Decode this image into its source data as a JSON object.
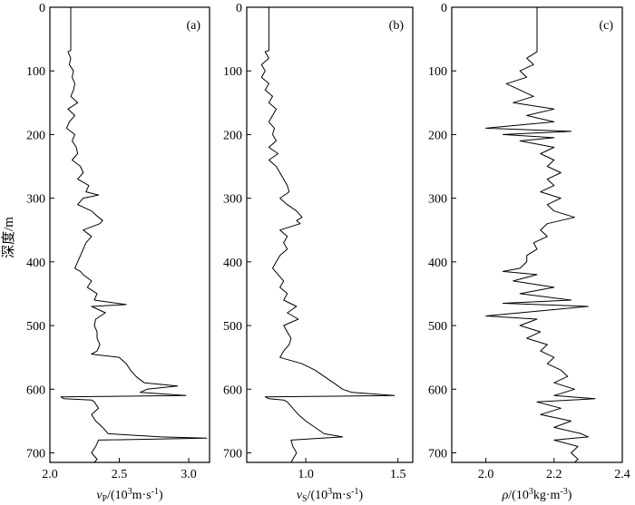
{
  "ylabel": "深度/m",
  "chart_data": [
    {
      "type": "line",
      "tag": "(a)",
      "xlabel": "vP/(10³m·s⁻¹)",
      "xlabel_parts": {
        "sym": "v",
        "sub": "P",
        "pre": "/(10",
        "sup1": "3",
        "mid": "m·s",
        "sup2": "-1",
        "post": ")"
      },
      "xlim": [
        2.0,
        3.15
      ],
      "xticks": [
        2.0,
        2.5,
        3.0
      ],
      "xtick_labels": [
        "2.0",
        "2.5",
        "3.0"
      ],
      "ylim": [
        0,
        715
      ],
      "yticks": [
        0,
        100,
        200,
        300,
        400,
        500,
        600,
        700
      ],
      "ytick_labels": [
        "0",
        "100",
        "200",
        "300",
        "400",
        "500",
        "600",
        "700"
      ],
      "depth": [
        0,
        68,
        70,
        80,
        90,
        100,
        110,
        120,
        130,
        140,
        150,
        160,
        170,
        180,
        190,
        200,
        210,
        220,
        230,
        240,
        250,
        260,
        270,
        280,
        290,
        295,
        300,
        305,
        310,
        315,
        320,
        328,
        335,
        340,
        350,
        360,
        370,
        380,
        390,
        400,
        410,
        415,
        420,
        430,
        440,
        450,
        460,
        467,
        470,
        475,
        480,
        490,
        500,
        510,
        520,
        530,
        540,
        545,
        550,
        560,
        570,
        580,
        590,
        595,
        600,
        605,
        610,
        612,
        615,
        617,
        620,
        630,
        640,
        650,
        660,
        670,
        675,
        677,
        680,
        690,
        700,
        710,
        715
      ],
      "values": [
        2.15,
        2.15,
        2.13,
        2.15,
        2.14,
        2.17,
        2.16,
        2.18,
        2.17,
        2.15,
        2.2,
        2.13,
        2.18,
        2.14,
        2.12,
        2.18,
        2.16,
        2.19,
        2.2,
        2.16,
        2.22,
        2.24,
        2.2,
        2.28,
        2.26,
        2.35,
        2.24,
        2.22,
        2.2,
        2.25,
        2.3,
        2.34,
        2.38,
        2.36,
        2.24,
        2.3,
        2.26,
        2.24,
        2.22,
        2.2,
        2.18,
        2.22,
        2.24,
        2.3,
        2.27,
        2.34,
        2.32,
        2.55,
        2.3,
        2.35,
        2.4,
        2.33,
        2.32,
        2.34,
        2.34,
        2.36,
        2.34,
        2.3,
        2.5,
        2.55,
        2.58,
        2.62,
        2.68,
        2.92,
        2.7,
        2.65,
        2.98,
        2.08,
        2.1,
        2.3,
        2.32,
        2.35,
        2.3,
        2.33,
        2.38,
        2.42,
        2.8,
        3.13,
        2.35,
        2.33,
        2.3,
        2.34,
        2.32
      ]
    },
    {
      "type": "line",
      "tag": "(b)",
      "xlabel": "vS/(10³m·s⁻¹)",
      "xlabel_parts": {
        "sym": "v",
        "sub": "S",
        "pre": "/(10",
        "sup1": "3",
        "mid": "m·s",
        "sup2": "-1",
        "post": ")"
      },
      "xlim": [
        0.68,
        1.58
      ],
      "xticks": [
        1.0,
        1.5
      ],
      "xtick_labels": [
        "1.0",
        "1.5"
      ],
      "ylim": [
        0,
        715
      ],
      "yticks": [
        0,
        100,
        200,
        300,
        400,
        500,
        600,
        700
      ],
      "ytick_labels": [
        "0",
        "100",
        "200",
        "300",
        "400",
        "500",
        "600",
        "700"
      ],
      "depth": [
        0,
        68,
        70,
        80,
        90,
        100,
        110,
        120,
        130,
        140,
        150,
        160,
        170,
        180,
        190,
        200,
        210,
        220,
        230,
        240,
        250,
        260,
        270,
        280,
        290,
        300,
        310,
        320,
        330,
        335,
        340,
        350,
        360,
        370,
        380,
        390,
        400,
        410,
        420,
        430,
        440,
        450,
        460,
        470,
        480,
        490,
        500,
        510,
        520,
        530,
        540,
        550,
        560,
        570,
        580,
        590,
        600,
        605,
        610,
        612,
        615,
        617,
        620,
        630,
        640,
        650,
        660,
        670,
        675,
        680,
        690,
        700,
        710,
        715
      ],
      "values": [
        0.8,
        0.8,
        0.78,
        0.8,
        0.76,
        0.78,
        0.76,
        0.8,
        0.78,
        0.82,
        0.8,
        0.84,
        0.82,
        0.8,
        0.83,
        0.82,
        0.84,
        0.8,
        0.85,
        0.8,
        0.84,
        0.86,
        0.88,
        0.9,
        0.91,
        0.86,
        0.9,
        0.95,
        0.98,
        0.95,
        0.97,
        0.86,
        0.9,
        0.88,
        0.9,
        0.86,
        0.84,
        0.82,
        0.85,
        0.88,
        0.86,
        0.9,
        0.88,
        0.95,
        0.9,
        0.96,
        0.88,
        0.9,
        0.92,
        0.91,
        0.88,
        0.86,
        0.98,
        1.05,
        1.1,
        1.15,
        1.2,
        1.25,
        1.48,
        0.78,
        0.8,
        0.88,
        0.9,
        0.93,
        0.96,
        1.0,
        1.05,
        1.1,
        1.2,
        0.92,
        0.93,
        0.95,
        0.93,
        0.92
      ]
    },
    {
      "type": "line",
      "tag": "(c)",
      "xlabel": "ρ/(10³kg·m⁻³)",
      "xlabel_parts": {
        "sym": "ρ",
        "sub": "",
        "pre": "/(10",
        "sup1": "3",
        "mid": "kg·m",
        "sup2": "-3",
        "post": ")"
      },
      "xlim": [
        1.9,
        2.4
      ],
      "xticks": [
        2.0,
        2.2,
        2.4
      ],
      "xtick_labels": [
        "2.0",
        "2.2",
        "2.4"
      ],
      "ylim": [
        0,
        715
      ],
      "yticks": [
        0,
        100,
        200,
        300,
        400,
        500,
        600,
        700
      ],
      "ytick_labels": [
        "0",
        "100",
        "200",
        "300",
        "400",
        "500",
        "600",
        "700"
      ],
      "depth": [
        0,
        70,
        80,
        90,
        100,
        110,
        120,
        130,
        140,
        150,
        160,
        170,
        180,
        190,
        195,
        200,
        205,
        210,
        220,
        230,
        240,
        250,
        260,
        270,
        280,
        290,
        300,
        310,
        320,
        330,
        340,
        350,
        360,
        370,
        380,
        390,
        400,
        410,
        415,
        420,
        430,
        440,
        450,
        460,
        465,
        470,
        480,
        485,
        490,
        500,
        510,
        520,
        530,
        540,
        550,
        560,
        570,
        580,
        590,
        600,
        610,
        615,
        620,
        630,
        640,
        650,
        660,
        670,
        675,
        680,
        690,
        700,
        710,
        715
      ],
      "values": [
        2.15,
        2.15,
        2.12,
        2.14,
        2.1,
        2.12,
        2.06,
        2.1,
        2.14,
        2.08,
        2.2,
        2.12,
        2.2,
        2.0,
        2.25,
        2.05,
        2.2,
        2.1,
        2.2,
        2.16,
        2.2,
        2.18,
        2.22,
        2.18,
        2.2,
        2.16,
        2.22,
        2.18,
        2.2,
        2.26,
        2.18,
        2.16,
        2.18,
        2.14,
        2.15,
        2.12,
        2.12,
        2.1,
        2.05,
        2.15,
        2.08,
        2.2,
        2.1,
        2.25,
        2.05,
        2.3,
        2.1,
        2.0,
        2.15,
        2.1,
        2.16,
        2.12,
        2.18,
        2.16,
        2.2,
        2.18,
        2.22,
        2.24,
        2.2,
        2.26,
        2.2,
        2.32,
        2.15,
        2.22,
        2.16,
        2.25,
        2.2,
        2.28,
        2.3,
        2.2,
        2.27,
        2.25,
        2.27,
        2.26
      ]
    }
  ]
}
